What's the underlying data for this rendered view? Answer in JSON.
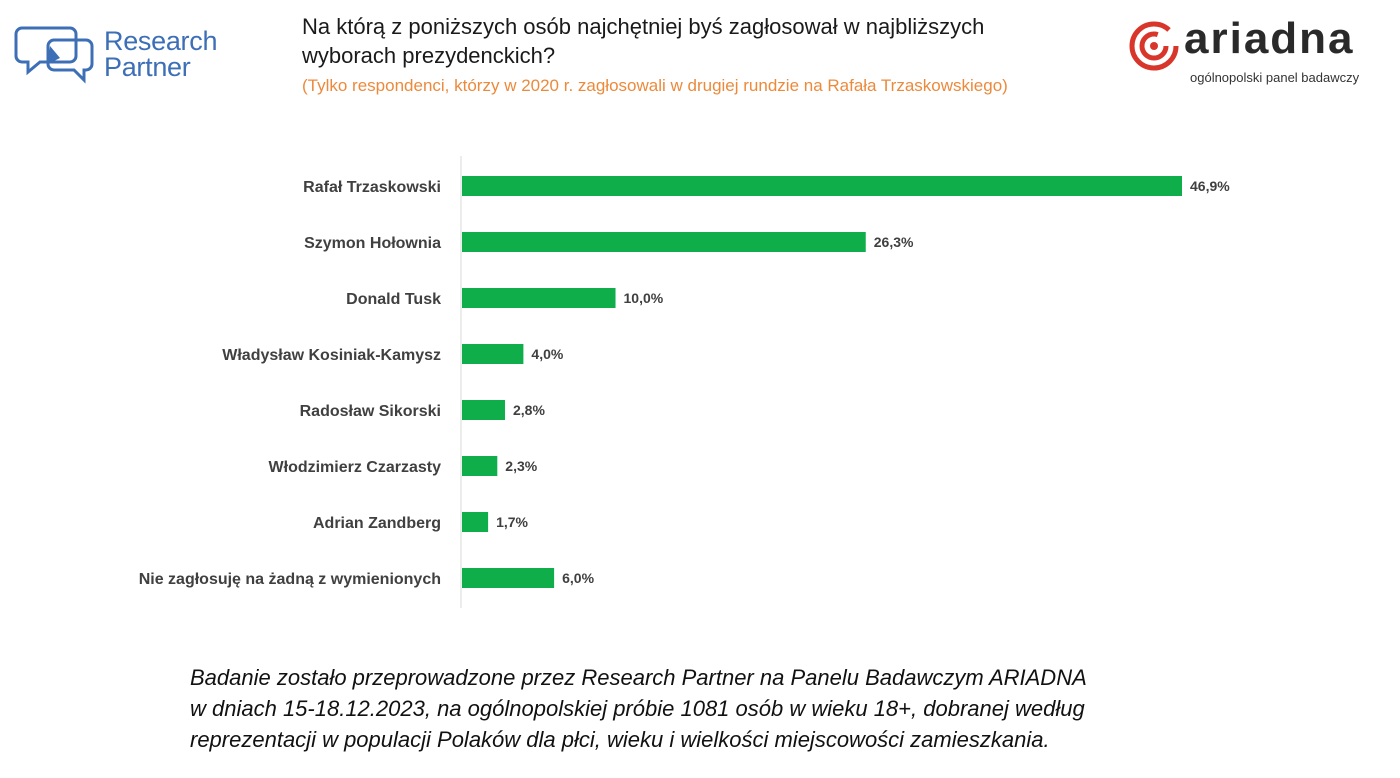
{
  "logos": {
    "research_partner": {
      "line1": "Research",
      "line2": "Partner",
      "color": "#3d6fb6"
    },
    "ariadna": {
      "name": "ariadna",
      "tagline": "ogólnopolski panel badawczy",
      "accent": "#d9362b"
    }
  },
  "header": {
    "title_line1": "Na którą z poniższych osób najchętniej byś zagłosował w najbliższych",
    "title_line2": "wyborach prezydenckich?",
    "subtitle": "(Tylko respondenci, którzy w 2020 r. zagłosowali w drugiej rundzie na Rafała Trzaskowskiego)",
    "subtitle_color": "#ec8a3c"
  },
  "chart_data": {
    "type": "bar",
    "orientation": "horizontal",
    "categories": [
      "Rafał Trzaskowski",
      "Szymon Hołownia",
      "Donald Tusk",
      "Władysław Kosiniak-Kamysz",
      "Radosław Sikorski",
      "Włodzimierz Czarzasty",
      "Adrian Zandberg",
      "Nie zagłosuję na żadną z wymienionych"
    ],
    "values": [
      46.9,
      26.3,
      10.0,
      4.0,
      2.8,
      2.3,
      1.7,
      6.0
    ],
    "value_labels": [
      "46,9%",
      "26,3%",
      "10,0%",
      "4,0%",
      "2,8%",
      "2,3%",
      "1,7%",
      "6,0%"
    ],
    "xlim": [
      0,
      46.9
    ],
    "bar_color": "#0fae4b",
    "title": "",
    "xlabel": "",
    "ylabel": "",
    "grid": false,
    "legend": "none"
  },
  "footer": {
    "line1": "Badanie zostało przeprowadzone przez Research Partner na Panelu Badawczym ARIADNA",
    "line2": "w dniach 15-18.12.2023, na ogólnopolskiej próbie 1081 osób w wieku 18+, dobranej według",
    "line3": "reprezentacji w populacji Polaków dla płci, wieku i wielkości miejscowości zamieszkania."
  }
}
